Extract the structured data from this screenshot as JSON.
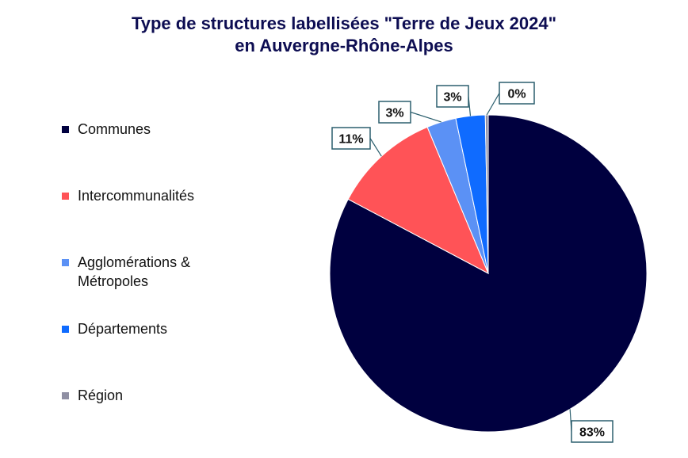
{
  "chart_data": {
    "type": "pie",
    "title": "Type de structures labellisées \"Terre de Jeux 2024\" en Auvergne-Rhône-Alpes",
    "title_lines": [
      "Type de structures labellisées \"Terre de Jeux 2024\"",
      "en Auvergne-Rhône-Alpes"
    ],
    "categories": [
      "Communes",
      "Intercommunalités",
      "Agglomérations & Métropoles",
      "Départements",
      "Région"
    ],
    "legend_labels": [
      "Communes",
      "Intercommunalités",
      "Agglomérations &\nMétropoles",
      "Départements",
      "Région"
    ],
    "values": [
      83,
      11,
      3,
      3,
      0.3
    ],
    "data_labels": [
      "83%",
      "11%",
      "3%",
      "3%",
      "0%"
    ],
    "colors": [
      "#00003f",
      "#ff5357",
      "#5b91f5",
      "#0f6bff",
      "#8f8fa3"
    ],
    "legend_position": "left",
    "start_angle": "top, clockwise"
  }
}
